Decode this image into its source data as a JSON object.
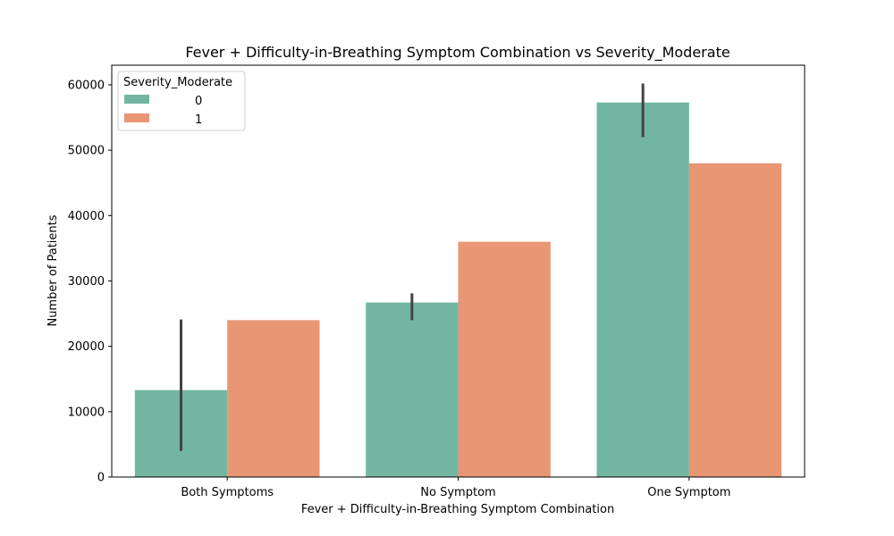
{
  "chart_data": {
    "type": "bar",
    "title": "Fever + Difficulty-in-Breathing Symptom Combination vs Severity_Moderate",
    "xlabel": "Fever + Difficulty-in-Breathing Symptom Combination",
    "ylabel": "Number of Patients",
    "categories": [
      "Both Symptoms",
      "No Symptom",
      "One Symptom"
    ],
    "ylim": [
      0,
      63000
    ],
    "yticks": [
      0,
      10000,
      20000,
      30000,
      40000,
      50000,
      60000
    ],
    "ytick_labels": [
      "0",
      "10000",
      "20000",
      "30000",
      "40000",
      "50000",
      "60000"
    ],
    "legend": {
      "title": "Severity_Moderate",
      "position": "top-left"
    },
    "grid": false,
    "series": [
      {
        "name": "0",
        "color": "#72b6a1",
        "values": [
          13300,
          26700,
          57300
        ],
        "error_low": [
          4000,
          24000,
          52000
        ],
        "error_high": [
          24100,
          28100,
          60200
        ]
      },
      {
        "name": "1",
        "color": "#e99675",
        "values": [
          24000,
          36000,
          48000
        ]
      }
    ]
  }
}
